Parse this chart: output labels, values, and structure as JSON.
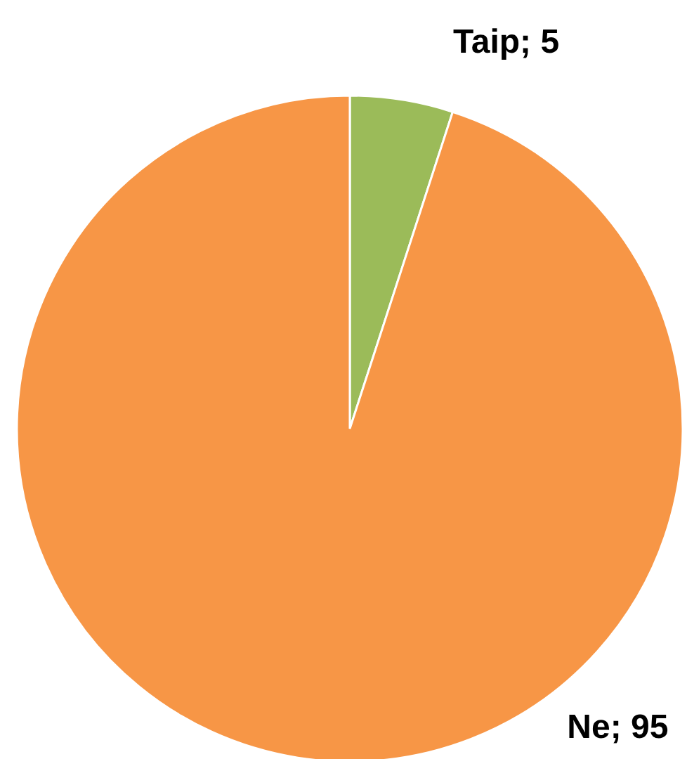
{
  "chart_data": {
    "type": "pie",
    "categories": [
      "Taip",
      "Ne"
    ],
    "values": [
      5,
      95
    ],
    "colors": [
      "#9bbb59",
      "#f79646"
    ],
    "value_labels": [
      "; 5",
      "; 95"
    ]
  }
}
